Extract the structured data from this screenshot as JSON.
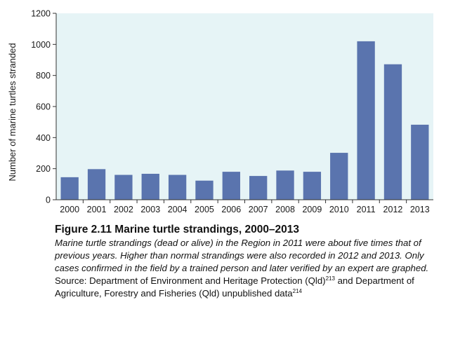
{
  "chart_data": {
    "type": "bar",
    "categories": [
      "2000",
      "2001",
      "2002",
      "2003",
      "2004",
      "2005",
      "2006",
      "2007",
      "2008",
      "2009",
      "2010",
      "2011",
      "2012",
      "2013"
    ],
    "values": [
      145,
      197,
      160,
      167,
      160,
      123,
      180,
      153,
      188,
      180,
      302,
      1020,
      872,
      483
    ],
    "xlabel": "",
    "ylabel": "Number of marine turtles stranded",
    "ylim": [
      0,
      1200
    ],
    "yticks": [
      0,
      200,
      400,
      600,
      800,
      1000,
      1200
    ],
    "grid": false,
    "colors": {
      "bar": "#5a74ae",
      "plot_background": "#e6f4f6",
      "axis": "#333333"
    }
  },
  "caption": {
    "title": "Figure 2.11 Marine turtle strandings, 2000–2013",
    "italic_text": "Marine turtle strandings (dead or alive) in the Region in 2011 were about five times that of previous years. Higher than normal strandings were also recorded in 2012 and 2013. Only cases confirmed in the field by a trained person and later verified by an expert are graphed.",
    "source_text_1": " Source: Department of Environment and Heritage Protection (Qld)",
    "ref_1": "213",
    "source_text_2": " and Department of Agriculture, Forestry and Fisheries (Qld) unpublished data",
    "ref_2": "214"
  }
}
